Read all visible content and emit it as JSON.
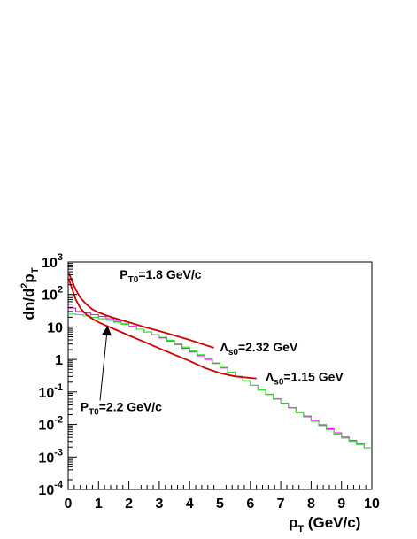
{
  "chart_data": {
    "type": "line",
    "title": "",
    "xlabel": {
      "main": "p",
      "sub": "T",
      "rest": " (GeV/c)"
    },
    "ylabel": {
      "a": "dn/d",
      "sup": "2",
      "b": "p",
      "sub": "T"
    },
    "x_range": [
      0,
      10
    ],
    "y_range_log10": [
      -4,
      3
    ],
    "log_y": true,
    "grid": false,
    "x_ticks": [
      "0",
      "1",
      "2",
      "3",
      "4",
      "5",
      "6",
      "7",
      "8",
      "9",
      "10"
    ],
    "y_ticks": [
      {
        "base": "10",
        "exp": "-4",
        "value": 0.0001
      },
      {
        "base": "10",
        "exp": "-3",
        "value": 0.001
      },
      {
        "base": "10",
        "exp": "-2",
        "value": 0.01
      },
      {
        "base": "10",
        "exp": "-1",
        "value": 0.1
      },
      {
        "base": "1",
        "exp": "",
        "value": 1
      },
      {
        "base": "10",
        "exp": "",
        "value": 10
      },
      {
        "base": "10",
        "exp": "2",
        "value": 100
      },
      {
        "base": "10",
        "exp": "3",
        "value": 1000
      }
    ],
    "series": [
      {
        "color": "#ff00ff",
        "style": "histogram",
        "bin_width": 0.25,
        "y": [
          38,
          30,
          27,
          24,
          21,
          18,
          15,
          12.5,
          10.5,
          8.5,
          7,
          5.7,
          4.6,
          3.7,
          2.9,
          2.2,
          1.7,
          1.3,
          1.0,
          0.75,
          0.55,
          0.4,
          0.3,
          0.22,
          0.16,
          0.115,
          0.085,
          0.062,
          0.045,
          0.033,
          0.024,
          0.018,
          0.0135,
          0.0098,
          0.0074,
          0.0055,
          0.0041,
          0.0032,
          0.0025,
          0.0019
        ]
      },
      {
        "color": "#33dd33",
        "style": "histogram",
        "bin_width": 0.25,
        "y": [
          25,
          24,
          22,
          20,
          18,
          16,
          14,
          12,
          10,
          8.5,
          7.0,
          5.8,
          4.8,
          3.9,
          3.1,
          2.4,
          1.85,
          1.4,
          1.05,
          0.78,
          0.57,
          0.41,
          0.3,
          0.22,
          0.16,
          0.115,
          0.083,
          0.06,
          0.044,
          0.032,
          0.023,
          0.017,
          0.0125,
          0.0092,
          0.0068,
          0.005,
          0.0038,
          0.003,
          0.0024,
          0.0019
        ]
      },
      {
        "color": "#cc0000",
        "style": "line",
        "x": [
          0.02,
          0.1,
          0.25,
          0.4,
          0.6,
          0.8,
          1.0,
          1.3,
          1.6,
          2.0,
          2.5,
          3.0,
          3.5,
          4.0,
          4.5,
          4.8
        ],
        "y": [
          450,
          300,
          140,
          80,
          50,
          35,
          28,
          22,
          18,
          14,
          10,
          7.5,
          5.5,
          4.0,
          2.8,
          2.3
        ]
      },
      {
        "color": "#cc0000",
        "style": "line",
        "x": [
          0.02,
          0.1,
          0.25,
          0.4,
          0.6,
          0.8,
          1.0,
          1.3,
          1.6,
          2.0,
          2.5,
          3.0,
          3.5,
          4.0,
          4.5,
          5.0,
          5.5,
          6.0,
          6.2
        ],
        "y": [
          300,
          180,
          70,
          38,
          24,
          18,
          14,
          10.5,
          8.0,
          5.5,
          3.5,
          2.2,
          1.4,
          0.9,
          0.55,
          0.38,
          0.3,
          0.27,
          0.26
        ]
      }
    ],
    "annotations": [
      {
        "main": "P",
        "sub": "T0",
        "rest": "=1.8 GeV/c",
        "at": [
          1.7,
          300
        ]
      },
      {
        "main": "Λ",
        "sub": "s0",
        "rest": "=2.32 GeV",
        "at": [
          5.0,
          1.8
        ]
      },
      {
        "main": "Λ",
        "sub": "s0",
        "rest": "=1.15 GeV",
        "at": [
          6.5,
          0.22
        ]
      },
      {
        "main": "P",
        "sub": "T0",
        "rest": "=2.2 GeV/c",
        "at": [
          0.4,
          0.026
        ]
      }
    ],
    "arrow": {
      "from": [
        1.05,
        0.055
      ],
      "to": [
        1.3,
        11
      ]
    }
  }
}
